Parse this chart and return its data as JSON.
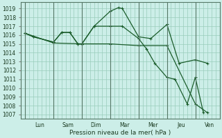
{
  "background_color": "#cceee8",
  "grid_color": "#99ccbb",
  "line_color": "#1a5c2a",
  "ylabel_ticks": [
    1007,
    1008,
    1009,
    1010,
    1011,
    1012,
    1013,
    1014,
    1015,
    1016,
    1017,
    1018,
    1019
  ],
  "ylim": [
    1006.5,
    1019.7
  ],
  "xlabel": "Pression niveau de la mer( hPa )",
  "day_labels": [
    "Lun",
    "Sam",
    "Dim",
    "Mar",
    "Mer",
    "Jeu",
    "Ven"
  ],
  "day_tick_positions": [
    0,
    7,
    14,
    21,
    28,
    35,
    42
  ],
  "xlim": [
    -1,
    48
  ],
  "vlines": [
    0,
    7,
    14,
    21,
    28,
    35,
    42
  ],
  "series": [
    {
      "x": [
        0,
        2,
        7,
        9,
        11,
        13,
        14,
        17,
        21,
        23,
        24,
        28,
        31,
        35,
        38,
        42,
        45
      ],
      "y": [
        1016.2,
        1015.8,
        1015.2,
        1016.3,
        1016.3,
        1015.0,
        1015.0,
        1017.0,
        1018.7,
        1019.1,
        1019.0,
        1015.8,
        1015.6,
        1017.2,
        1012.8,
        1013.2,
        1012.8
      ]
    },
    {
      "x": [
        0,
        2,
        7,
        9,
        11,
        13,
        14,
        17,
        21,
        24,
        28,
        30,
        32,
        35,
        37,
        40,
        42,
        44
      ],
      "y": [
        1016.2,
        1015.8,
        1015.2,
        1016.3,
        1016.3,
        1015.0,
        1015.0,
        1017.0,
        1017.0,
        1017.0,
        1015.6,
        1014.4,
        1012.8,
        1011.2,
        1011.0,
        1008.2,
        1011.2,
        1007.2
      ]
    },
    {
      "x": [
        0,
        7,
        14,
        21,
        28,
        35,
        42,
        45
      ],
      "y": [
        1016.2,
        1015.1,
        1015.0,
        1015.0,
        1014.8,
        1014.8,
        1008.2,
        1007.2
      ]
    }
  ]
}
